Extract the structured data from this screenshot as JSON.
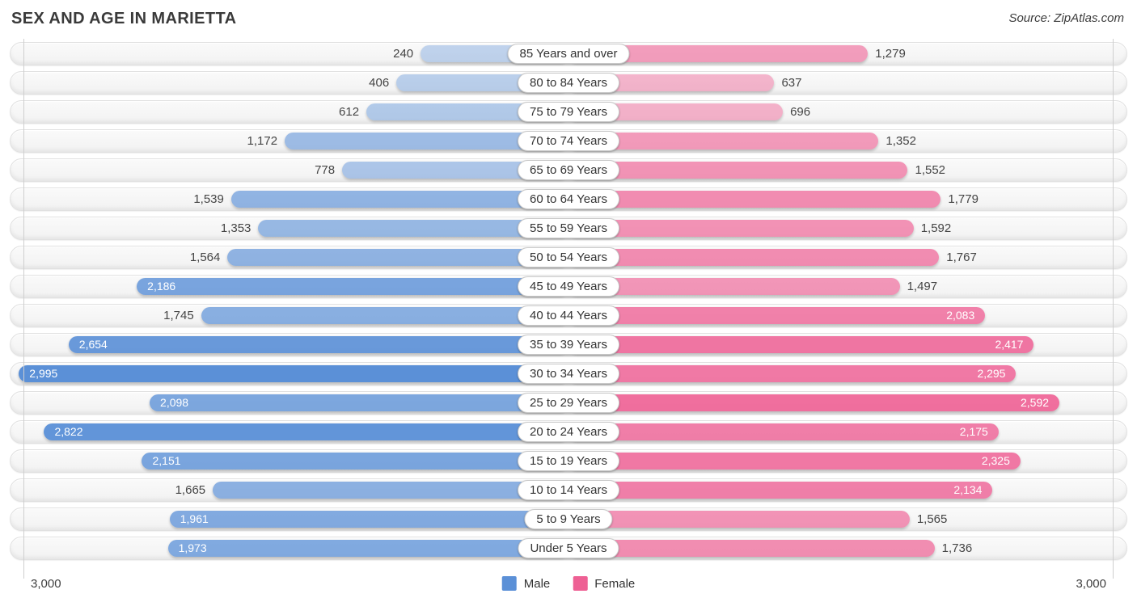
{
  "header": {
    "title": "SEX AND AGE IN MARIETTA",
    "source": "Source: ZipAtlas.com"
  },
  "legend": {
    "male_label": "Male",
    "female_label": "Female"
  },
  "axis": {
    "left_max": "3,000",
    "right_max": "3,000"
  },
  "colors": {
    "male": "#5b90d7",
    "female": "#ee6094",
    "track_background": "#f4f4f4",
    "track_border": "#e1e1e1"
  },
  "rows": [
    {
      "label": "85 Years and over",
      "male": "240",
      "female": "1,279"
    },
    {
      "label": "80 to 84 Years",
      "male": "406",
      "female": "637"
    },
    {
      "label": "75 to 79 Years",
      "male": "612",
      "female": "696"
    },
    {
      "label": "70 to 74 Years",
      "male": "1,172",
      "female": "1,352"
    },
    {
      "label": "65 to 69 Years",
      "male": "778",
      "female": "1,552"
    },
    {
      "label": "60 to 64 Years",
      "male": "1,539",
      "female": "1,779"
    },
    {
      "label": "55 to 59 Years",
      "male": "1,353",
      "female": "1,592"
    },
    {
      "label": "50 to 54 Years",
      "male": "1,564",
      "female": "1,767"
    },
    {
      "label": "45 to 49 Years",
      "male": "2,186",
      "female": "1,497"
    },
    {
      "label": "40 to 44 Years",
      "male": "1,745",
      "female": "2,083"
    },
    {
      "label": "35 to 39 Years",
      "male": "2,654",
      "female": "2,417"
    },
    {
      "label": "30 to 34 Years",
      "male": "2,995",
      "female": "2,295"
    },
    {
      "label": "25 to 29 Years",
      "male": "2,098",
      "female": "2,592"
    },
    {
      "label": "20 to 24 Years",
      "male": "2,822",
      "female": "2,175"
    },
    {
      "label": "15 to 19 Years",
      "male": "2,151",
      "female": "2,325"
    },
    {
      "label": "10 to 14 Years",
      "male": "1,665",
      "female": "2,134"
    },
    {
      "label": "5 to 9 Years",
      "male": "1,961",
      "female": "1,565"
    },
    {
      "label": "Under 5 Years",
      "male": "1,973",
      "female": "1,736"
    }
  ],
  "chart_data": {
    "type": "bar",
    "subtype": "population-pyramid",
    "title": "SEX AND AGE IN MARIETTA",
    "source": "Source: ZipAtlas.com",
    "categories": [
      "85 Years and over",
      "80 to 84 Years",
      "75 to 79 Years",
      "70 to 74 Years",
      "65 to 69 Years",
      "60 to 64 Years",
      "55 to 59 Years",
      "50 to 54 Years",
      "45 to 49 Years",
      "40 to 44 Years",
      "35 to 39 Years",
      "30 to 34 Years",
      "25 to 29 Years",
      "20 to 24 Years",
      "15 to 19 Years",
      "10 to 14 Years",
      "5 to 9 Years",
      "Under 5 Years"
    ],
    "series": [
      {
        "name": "Male",
        "side": "left",
        "color": "#5b90d7",
        "values": [
          240,
          406,
          612,
          1172,
          778,
          1539,
          1353,
          1564,
          2186,
          1745,
          2654,
          2995,
          2098,
          2822,
          2151,
          1665,
          1961,
          1973
        ]
      },
      {
        "name": "Female",
        "side": "right",
        "color": "#ee6094",
        "values": [
          1279,
          637,
          696,
          1352,
          1552,
          1779,
          1592,
          1767,
          1497,
          2083,
          2417,
          2295,
          2592,
          2175,
          2325,
          2134,
          1565,
          1736
        ]
      }
    ],
    "axis_max_each_side": 3000,
    "axis_tick_labels": [
      "3,000",
      "3,000"
    ],
    "legend_position": "bottom-center",
    "grid": "max-gridline-both-sides",
    "bar_opacity_scales_with_value": true
  }
}
